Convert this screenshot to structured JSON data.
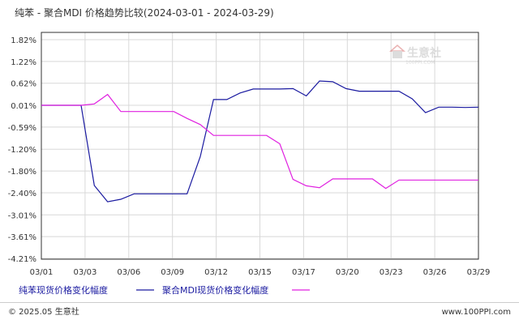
{
  "chart_data": {
    "type": "line",
    "title": "纯苯 - 聚合MDI 价格趋势比较(2024-03-01 - 2024-03-29)",
    "y_ticks": [
      "1.82%",
      "1.22%",
      "0.62%",
      "0.01%",
      "-0.59%",
      "-1.20%",
      "-1.80%",
      "-2.40%",
      "-3.01%",
      "-3.61%",
      "-4.21%"
    ],
    "y_tick_values": [
      1.82,
      1.22,
      0.62,
      0.01,
      -0.59,
      -1.2,
      -1.8,
      -2.4,
      -3.01,
      -3.61,
      -4.21
    ],
    "ylim": [
      -4.21,
      1.82
    ],
    "x_ticks": [
      "03/01",
      "03/03",
      "03/06",
      "03/09",
      "03/12",
      "03/15",
      "03/17",
      "03/20",
      "03/23",
      "03/26",
      "03/29"
    ],
    "grid": true,
    "legend_position": "bottom",
    "series": [
      {
        "name": "纯苯现货价格变化幅度",
        "color": "#1a1aa0",
        "values": [
          0.01,
          0.01,
          0.01,
          0.01,
          -2.2,
          -2.65,
          -2.58,
          -2.43,
          -2.43,
          -2.43,
          -2.43,
          -2.43,
          -1.4,
          0.17,
          0.17,
          0.35,
          0.46,
          0.46,
          0.46,
          0.47,
          0.27,
          0.68,
          0.66,
          0.47,
          0.4,
          0.4,
          0.4,
          0.4,
          0.19,
          -0.19,
          -0.04,
          -0.04,
          -0.05,
          -0.04
        ]
      },
      {
        "name": "聚合MDI现货价格变化幅度",
        "color": "#e020e0",
        "values": [
          0.01,
          0.01,
          0.01,
          0.01,
          0.05,
          0.31,
          -0.16,
          -0.16,
          -0.16,
          -0.16,
          -0.16,
          -0.35,
          -0.52,
          -0.82,
          -0.82,
          -0.82,
          -0.82,
          -0.82,
          -1.05,
          -2.03,
          -2.21,
          -2.26,
          -2.02,
          -2.02,
          -2.02,
          -2.02,
          -2.28,
          -2.05,
          -2.05,
          -2.05,
          -2.05,
          -2.05,
          -2.05,
          -2.05
        ]
      }
    ]
  },
  "footer": {
    "copyright": "© 2025.05 生意社",
    "site": "www.100PPI.com"
  },
  "watermark": {
    "brand": "生意社",
    "domain": "100PPI.COM"
  }
}
